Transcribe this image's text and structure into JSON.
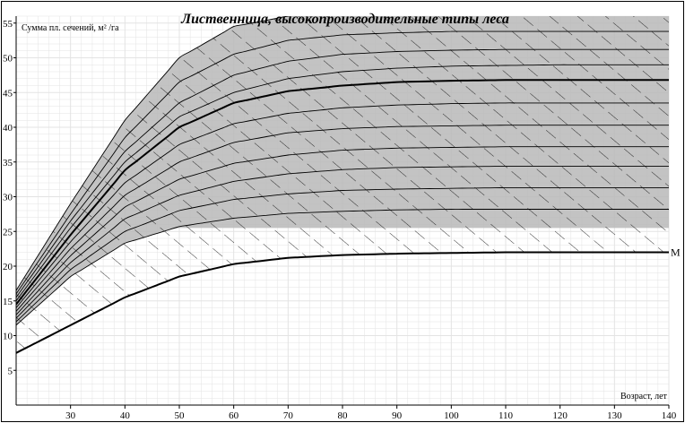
{
  "chart_data": {
    "type": "line",
    "title": "Лиственница, высокопроизводительные типы леса",
    "ylabel": "Сумма пл. сечений, м² /га",
    "xlabel": "Возраст, лет",
    "xlim": [
      20,
      140
    ],
    "ylim": [
      0,
      56
    ],
    "x_ticks": [
      30,
      40,
      50,
      60,
      70,
      80,
      90,
      100,
      110,
      120,
      130,
      140
    ],
    "y_ticks": [
      5,
      10,
      15,
      20,
      25,
      30,
      35,
      40,
      45,
      50,
      55
    ],
    "x_tick_labels": [
      "30",
      "40",
      "50",
      "60",
      "70",
      "80",
      "90",
      "100",
      "110",
      "120",
      "130",
      "140"
    ],
    "y_tick_labels": [
      "5",
      "10",
      "15",
      "20",
      "25",
      "30",
      "35",
      "40",
      "45",
      "50",
      "55"
    ],
    "grid": true,
    "shaded_band": {
      "lower_y": 25.5,
      "upper": "top series"
    },
    "hatched_band": {
      "lower": "M",
      "upper": "top series"
    },
    "series": [
      {
        "label": "",
        "bold": false,
        "x": [
          20,
          30,
          40,
          50,
          60,
          70,
          80,
          90,
          100,
          110,
          120,
          130,
          140
        ],
        "y": [
          16.5,
          29,
          41,
          50,
          54.5,
          56,
          56.3,
          56.4,
          56.5,
          56.5,
          56.5,
          56.5,
          56.5
        ]
      },
      {
        "label": "",
        "bold": false,
        "x": [
          20,
          30,
          40,
          50,
          60,
          70,
          80,
          90,
          100,
          110,
          120,
          130,
          140
        ],
        "y": [
          16,
          27.5,
          38.5,
          46.5,
          50.5,
          52.5,
          53.3,
          53.6,
          53.8,
          53.8,
          53.8,
          53.8,
          53.8
        ]
      },
      {
        "label": "",
        "bold": false,
        "x": [
          20,
          30,
          40,
          50,
          60,
          70,
          80,
          90,
          100,
          110,
          120,
          130,
          140
        ],
        "y": [
          15.5,
          26.5,
          36.5,
          43.5,
          47.5,
          49.5,
          50.5,
          50.9,
          51.1,
          51.2,
          51.2,
          51.2,
          51.2
        ]
      },
      {
        "label": "",
        "bold": false,
        "x": [
          20,
          30,
          40,
          50,
          60,
          70,
          80,
          90,
          100,
          110,
          120,
          130,
          140
        ],
        "y": [
          15,
          25.5,
          35,
          41.5,
          45,
          47,
          48,
          48.5,
          48.8,
          48.9,
          49,
          49,
          49
        ]
      },
      {
        "label": "",
        "bold": true,
        "x": [
          20,
          30,
          40,
          50,
          60,
          70,
          80,
          90,
          100,
          110,
          120,
          130,
          140
        ],
        "y": [
          14.5,
          24.5,
          33.8,
          40,
          43.5,
          45.2,
          46,
          46.5,
          46.7,
          46.8,
          46.8,
          46.8,
          46.8
        ]
      },
      {
        "label": "",
        "bold": false,
        "x": [
          20,
          30,
          40,
          50,
          60,
          70,
          80,
          90,
          100,
          110,
          120,
          130,
          140
        ],
        "y": [
          14,
          23.5,
          32,
          37.5,
          40.5,
          42,
          42.8,
          43.2,
          43.4,
          43.5,
          43.5,
          43.5,
          43.5
        ]
      },
      {
        "label": "",
        "bold": false,
        "x": [
          20,
          30,
          40,
          50,
          60,
          70,
          80,
          90,
          100,
          110,
          120,
          130,
          140
        ],
        "y": [
          13.5,
          22.5,
          30.2,
          35,
          37.8,
          39.2,
          39.8,
          40.1,
          40.2,
          40.3,
          40.3,
          40.3,
          40.3
        ]
      },
      {
        "label": "",
        "bold": false,
        "x": [
          20,
          30,
          40,
          50,
          60,
          70,
          80,
          90,
          100,
          110,
          120,
          130,
          140
        ],
        "y": [
          13,
          21.5,
          28.5,
          32.5,
          34.8,
          36,
          36.7,
          37,
          37.1,
          37.2,
          37.2,
          37.2,
          37.2
        ]
      },
      {
        "label": "",
        "bold": false,
        "x": [
          20,
          30,
          40,
          50,
          60,
          70,
          80,
          90,
          100,
          110,
          120,
          130,
          140
        ],
        "y": [
          12.5,
          20.5,
          26.8,
          30.2,
          32.2,
          33.3,
          33.9,
          34.2,
          34.3,
          34.4,
          34.4,
          34.4,
          34.4
        ]
      },
      {
        "label": "",
        "bold": false,
        "x": [
          20,
          30,
          40,
          50,
          60,
          70,
          80,
          90,
          100,
          110,
          120,
          130,
          140
        ],
        "y": [
          12,
          19.5,
          25,
          28,
          29.6,
          30.4,
          30.9,
          31.1,
          31.2,
          31.3,
          31.3,
          31.3,
          31.3
        ]
      },
      {
        "label": "",
        "bold": false,
        "x": [
          20,
          30,
          40,
          50,
          60,
          70,
          80,
          90,
          100,
          110,
          120,
          130,
          140
        ],
        "y": [
          11.5,
          18.5,
          23.3,
          25.7,
          26.9,
          27.6,
          27.9,
          28.1,
          28.2,
          28.2,
          28.2,
          28.2,
          28.2
        ]
      },
      {
        "label": "М",
        "bold": true,
        "x": [
          20,
          30,
          40,
          50,
          60,
          70,
          80,
          90,
          100,
          110,
          120,
          130,
          140
        ],
        "y": [
          7.5,
          11.5,
          15.5,
          18.5,
          20.3,
          21.2,
          21.6,
          21.8,
          21.9,
          22,
          22,
          22,
          22
        ]
      }
    ]
  },
  "colors": {
    "background": "#ffffff",
    "grid": "#e3e3e3",
    "shade": "#b9b9b9",
    "line": "#000000"
  }
}
